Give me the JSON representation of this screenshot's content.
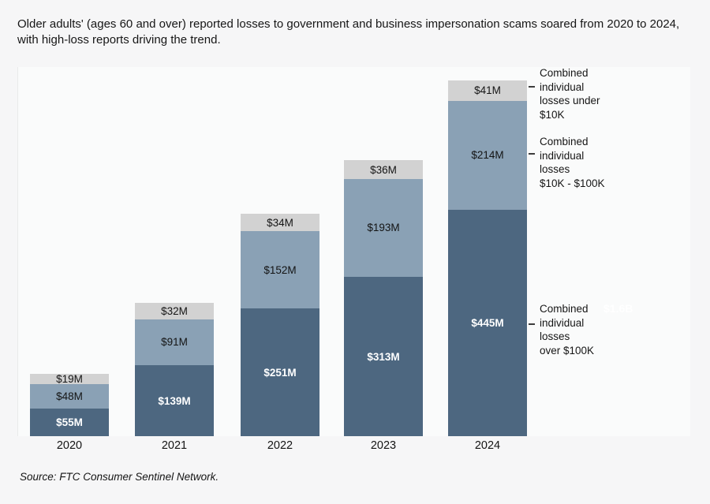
{
  "title": "Older adults' (ages 60 and over) reported losses to government and business impersonation scams soared from 2020 to 2024, with high-loss reports driving the trend.",
  "source": "Source: FTC Consumer Sentinel Network.",
  "colors": {
    "over_100k": "#4d6780",
    "mid_10k_100k": "#8aa1b5",
    "under_10k": "#d2d2d2",
    "page_background": "#f6f6f7",
    "plot_background": "#fafbfb",
    "dark_segment_label": "#ffffff",
    "light_segment_label": "#141414"
  },
  "chart_data": {
    "type": "bar",
    "stacked": true,
    "title": "Older adults' (ages 60 and over) reported losses to government and business impersonation scams soared from 2020 to 2024, with high-loss reports driving the trend.",
    "xlabel": "",
    "ylabel": "",
    "grid": false,
    "legend_position": "right",
    "unit": "USD millions",
    "categories": [
      "2020",
      "2021",
      "2022",
      "2023",
      "2024"
    ],
    "series": [
      {
        "key": "over-100k",
        "name": "Combined individual losses over $100K",
        "color": "#4d6780",
        "values": [
          55,
          139,
          251,
          313,
          445
        ],
        "labels": [
          "$55M",
          "$139M",
          "$251M",
          "$313M",
          "$445M"
        ]
      },
      {
        "key": "10k-100k",
        "name": "Combined individual losses $10K - $100K",
        "color": "#8aa1b5",
        "values": [
          48,
          91,
          152,
          193,
          214
        ],
        "labels": [
          "$48M",
          "$91M",
          "$152M",
          "$193M",
          "$214M"
        ]
      },
      {
        "key": "under-10k",
        "name": "Combined individual losses under $10K",
        "color": "#d2d2d2",
        "values": [
          19,
          32,
          34,
          36,
          41
        ],
        "labels": [
          "$19M",
          "$32M",
          "$34M",
          "$36M",
          "$41M"
        ]
      }
    ],
    "legend_labels": [
      {
        "lines": [
          "Combined",
          "individual",
          "losses under",
          "$10K"
        ]
      },
      {
        "lines": [
          "Combined",
          "individual",
          "losses",
          "$10K - $100K"
        ]
      },
      {
        "lines": [
          "Combined",
          "individual",
          "losses",
          "over $100K"
        ]
      }
    ],
    "annotations": {
      "total_2024": "$1.6B"
    }
  }
}
